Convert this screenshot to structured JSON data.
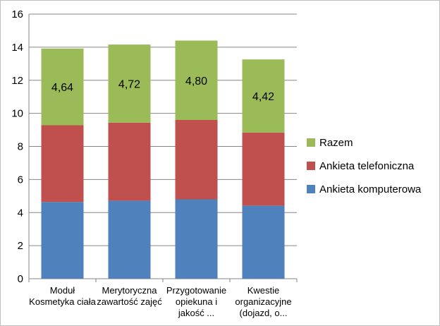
{
  "chart_data": {
    "type": "bar",
    "stacked": true,
    "categories": [
      [
        "Moduł",
        "Kosmetyka ciała"
      ],
      [
        "Merytoryczna",
        "zawartość zajęć"
      ],
      [
        "Przygotowanie",
        "opiekuna i",
        "jakość ..."
      ],
      [
        "Kwestie",
        "organizacyjne",
        "(dojazd, o..."
      ]
    ],
    "series": [
      {
        "name": "Ankieta komputerowa",
        "color": "#4F81BD",
        "values": [
          4.64,
          4.72,
          4.8,
          4.42
        ]
      },
      {
        "name": "Ankieta telefoniczna",
        "color": "#C0504D",
        "values": [
          4.64,
          4.72,
          4.8,
          4.42
        ]
      },
      {
        "name": "Razem",
        "color": "#9BBB59",
        "values": [
          4.64,
          4.72,
          4.8,
          4.42
        ]
      }
    ],
    "data_labels": {
      "series": "Razem",
      "texts": [
        "4,64",
        "4,72",
        "4,80",
        "4,42"
      ]
    },
    "yticks": [
      "0",
      "2",
      "4",
      "6",
      "8",
      "10",
      "12",
      "14",
      "16"
    ],
    "ylim": [
      0,
      16
    ],
    "grid": true,
    "legend_position": "right",
    "legend_order": [
      "Razem",
      "Ankieta telefoniczna",
      "Ankieta komputerowa"
    ],
    "title": "",
    "xlabel": "",
    "ylabel": ""
  }
}
